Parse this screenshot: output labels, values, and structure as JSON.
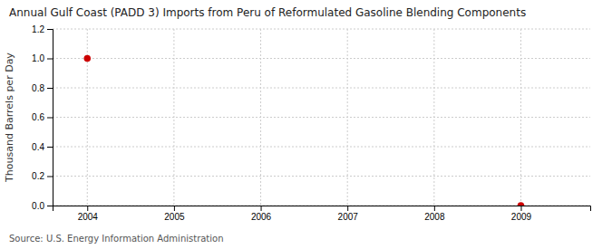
{
  "chart_data": {
    "type": "scatter",
    "title": "Annual Gulf Coast (PADD 3) Imports from Peru of Reformulated Gasoline Blending Components",
    "ylabel": "Thousand Barrels per Day",
    "source": "Source: U.S. Energy Information Administration",
    "x": [
      2004,
      2009
    ],
    "values": [
      1.0,
      0.0
    ],
    "color": "#cc0000",
    "marker": "circle",
    "xlim": [
      2003.6,
      2009.8
    ],
    "ylim": [
      0.0,
      1.2
    ],
    "xticks": [
      2004,
      2005,
      2006,
      2007,
      2008,
      2009
    ],
    "yticks": [
      {
        "value": 0.0,
        "label": "0.0"
      },
      0.2,
      0.4,
      0.6,
      0.8,
      {
        "value": 1.0,
        "label": "1.0"
      },
      1.2
    ],
    "grid": true
  }
}
